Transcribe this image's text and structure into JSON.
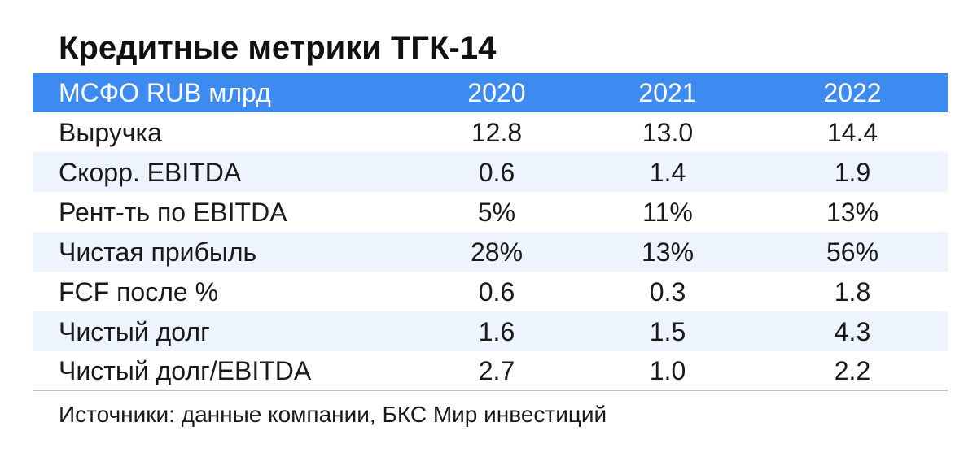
{
  "title": "Кредитные метрики ТГК-14",
  "table": {
    "header": {
      "label": "МСФО RUB млрд",
      "years": [
        "2020",
        "2021",
        "2022"
      ]
    },
    "rows": [
      {
        "label": "Выручка",
        "values": [
          "12.8",
          "13.0",
          "14.4"
        ]
      },
      {
        "label": "Скорр. EBITDA",
        "values": [
          "0.6",
          "1.4",
          "1.9"
        ]
      },
      {
        "label": "Рент-ть по EBITDA",
        "values": [
          "5%",
          "11%",
          "13%"
        ]
      },
      {
        "label": "Чистая прибыль",
        "values": [
          "28%",
          "13%",
          "56%"
        ]
      },
      {
        "label": "FCF после %",
        "values": [
          "0.6",
          "0.3",
          "1.8"
        ]
      },
      {
        "label": "Чистый долг",
        "values": [
          "1.6",
          "1.5",
          "4.3"
        ]
      },
      {
        "label": "Чистый долг/EBITDA",
        "values": [
          "2.7",
          "1.0",
          "2.2"
        ]
      }
    ]
  },
  "source": "Источники: данные компании, БКС Мир инвестиций",
  "colors": {
    "header_bg": "#3d8af0",
    "header_text": "#ffffff",
    "alt_row_bg": "#edf4fd",
    "text": "#1a1a1a"
  }
}
